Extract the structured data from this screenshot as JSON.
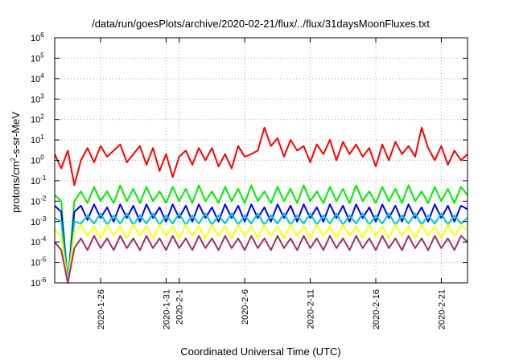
{
  "chart_data": {
    "type": "line",
    "title": "/data/run/goesPlots/archive/2020-02-21/flux/../flux/31daysMoonFluxes.txt",
    "xlabel": "Coordinated Universal Time (UTC)",
    "ylabel": "protons/cm2-s-sr-MeV",
    "y_scale": "log",
    "ylim": [
      1e-06,
      1000000.0
    ],
    "xlim": [
      "2020-01-22T12:00",
      "2020-02-23T00:00"
    ],
    "grid": true,
    "legend": "none",
    "y_tick_labels": [
      "10-6",
      "10-5",
      "10-4",
      "10-3",
      "10-2",
      "10-1",
      "100",
      "101",
      "102",
      "103",
      "104",
      "105",
      "106"
    ],
    "x_tick_labels": [
      "2020-1-26",
      "2020-1-31",
      "2020-2-1",
      "2020-2-6",
      "2020-2-11",
      "2020-2-16",
      "2020-2-21"
    ],
    "x_ticks": [
      "2020-01-26",
      "2020-01-31",
      "2020-02-01",
      "2020-02-06",
      "2020-02-11",
      "2020-02-16",
      "2020-02-21"
    ],
    "series": [
      {
        "color": "#ff0000",
        "x": [
          "2020-01-22T12:00",
          "2020-01-23T00:00",
          "2020-01-23T12:00",
          "2020-01-24T00:00",
          "2020-01-24T12:00",
          "2020-01-25T00:00",
          "2020-01-25T12:00",
          "2020-01-26T00:00",
          "2020-01-26T12:00",
          "2020-01-27T00:00",
          "2020-01-27T12:00",
          "2020-01-28T00:00",
          "2020-01-28T12:00",
          "2020-01-29T00:00",
          "2020-01-29T12:00",
          "2020-01-30T00:00",
          "2020-01-30T12:00",
          "2020-01-31T00:00",
          "2020-01-31T12:00",
          "2020-02-01T00:00",
          "2020-02-01T12:00",
          "2020-02-02T00:00",
          "2020-02-02T12:00",
          "2020-02-03T00:00",
          "2020-02-03T12:00",
          "2020-02-04T00:00",
          "2020-02-04T12:00",
          "2020-02-05T00:00",
          "2020-02-05T12:00",
          "2020-02-06T00:00",
          "2020-02-06T12:00",
          "2020-02-07T00:00",
          "2020-02-07T12:00",
          "2020-02-08T00:00",
          "2020-02-08T12:00",
          "2020-02-09T00:00",
          "2020-02-09T12:00",
          "2020-02-10T00:00",
          "2020-02-10T12:00",
          "2020-02-11T00:00",
          "2020-02-11T12:00",
          "2020-02-12T00:00",
          "2020-02-12T12:00",
          "2020-02-13T00:00",
          "2020-02-13T12:00",
          "2020-02-14T00:00",
          "2020-02-14T12:00",
          "2020-02-15T00:00",
          "2020-02-15T12:00",
          "2020-02-16T00:00",
          "2020-02-16T12:00",
          "2020-02-17T00:00",
          "2020-02-17T12:00",
          "2020-02-18T00:00",
          "2020-02-18T12:00",
          "2020-02-19T00:00",
          "2020-02-19T12:00",
          "2020-02-20T00:00",
          "2020-02-20T12:00",
          "2020-02-21T00:00",
          "2020-02-21T12:00",
          "2020-02-22T00:00",
          "2020-02-22T12:00",
          "2020-02-23T00:00"
        ],
        "values": [
          2,
          0.4,
          3,
          0.06,
          1,
          4,
          0.8,
          5,
          1.5,
          3,
          6,
          0.8,
          2,
          5,
          0.6,
          4,
          0.3,
          2,
          0.15,
          1.5,
          3,
          0.6,
          4,
          1,
          4,
          0.5,
          2,
          0.4,
          5,
          1.5,
          2,
          3,
          40,
          5,
          12,
          1.5,
          10,
          3,
          5,
          0.8,
          6,
          2,
          10,
          1,
          8,
          2,
          6,
          1.5,
          4,
          0.5,
          6,
          1,
          8,
          2,
          5,
          1.5,
          40,
          4,
          1,
          5,
          0.6,
          3,
          1,
          2
        ]
      },
      {
        "color": "#00ee00",
        "x": [
          "2020-01-22T12:00",
          "2020-01-23T00:00",
          "2020-01-23T12:00",
          "2020-01-24T00:00",
          "2020-01-24T12:00",
          "2020-01-25T00:00",
          "2020-01-25T12:00",
          "2020-01-26T00:00",
          "2020-01-26T12:00",
          "2020-01-27T00:00",
          "2020-01-27T12:00",
          "2020-01-28T00:00",
          "2020-01-28T12:00",
          "2020-01-29T00:00",
          "2020-01-29T12:00",
          "2020-01-30T00:00",
          "2020-01-30T12:00",
          "2020-01-31T00:00",
          "2020-01-31T12:00",
          "2020-02-01T00:00",
          "2020-02-01T12:00",
          "2020-02-02T00:00",
          "2020-02-02T12:00",
          "2020-02-03T00:00",
          "2020-02-03T12:00",
          "2020-02-04T00:00",
          "2020-02-04T12:00",
          "2020-02-05T00:00",
          "2020-02-05T12:00",
          "2020-02-06T00:00",
          "2020-02-06T12:00",
          "2020-02-07T00:00",
          "2020-02-07T12:00",
          "2020-02-08T00:00",
          "2020-02-08T12:00",
          "2020-02-09T00:00",
          "2020-02-09T12:00",
          "2020-02-10T00:00",
          "2020-02-10T12:00",
          "2020-02-11T00:00",
          "2020-02-11T12:00",
          "2020-02-12T00:00",
          "2020-02-12T12:00",
          "2020-02-13T00:00",
          "2020-02-13T12:00",
          "2020-02-14T00:00",
          "2020-02-14T12:00",
          "2020-02-15T00:00",
          "2020-02-15T12:00",
          "2020-02-16T00:00",
          "2020-02-16T12:00",
          "2020-02-17T00:00",
          "2020-02-17T12:00",
          "2020-02-18T00:00",
          "2020-02-18T12:00",
          "2020-02-19T00:00",
          "2020-02-19T12:00",
          "2020-02-20T00:00",
          "2020-02-20T12:00",
          "2020-02-21T00:00",
          "2020-02-21T12:00",
          "2020-02-22T00:00",
          "2020-02-22T12:00",
          "2020-02-23T00:00"
        ],
        "values": [
          0.02,
          0.01,
          1e-06,
          0.01,
          0.03,
          0.008,
          0.05,
          0.01,
          0.03,
          0.008,
          0.06,
          0.01,
          0.04,
          0.008,
          0.05,
          0.01,
          0.03,
          0.008,
          0.05,
          0.01,
          0.04,
          0.008,
          0.06,
          0.01,
          0.03,
          0.008,
          0.05,
          0.01,
          0.04,
          0.008,
          0.06,
          0.01,
          0.03,
          0.008,
          0.05,
          0.01,
          0.04,
          0.008,
          0.06,
          0.01,
          0.03,
          0.008,
          0.05,
          0.01,
          0.04,
          0.008,
          0.06,
          0.01,
          0.03,
          0.008,
          0.05,
          0.01,
          0.04,
          0.008,
          0.06,
          0.01,
          0.03,
          0.008,
          0.05,
          0.01,
          0.04,
          0.008,
          0.05,
          0.02
        ]
      },
      {
        "color": "#0000ff",
        "x": [
          "2020-01-22T12:00",
          "2020-01-23T00:00",
          "2020-01-23T12:00",
          "2020-01-24T00:00",
          "2020-01-24T12:00",
          "2020-01-25T00:00",
          "2020-01-25T12:00",
          "2020-01-26T00:00",
          "2020-01-26T12:00",
          "2020-01-27T00:00",
          "2020-01-27T12:00",
          "2020-01-28T00:00",
          "2020-01-28T12:00",
          "2020-01-29T00:00",
          "2020-01-29T12:00",
          "2020-01-30T00:00",
          "2020-01-30T12:00",
          "2020-01-31T00:00",
          "2020-01-31T12:00",
          "2020-02-01T00:00",
          "2020-02-01T12:00",
          "2020-02-02T00:00",
          "2020-02-02T12:00",
          "2020-02-03T00:00",
          "2020-02-03T12:00",
          "2020-02-04T00:00",
          "2020-02-04T12:00",
          "2020-02-05T00:00",
          "2020-02-05T12:00",
          "2020-02-06T00:00",
          "2020-02-06T12:00",
          "2020-02-07T00:00",
          "2020-02-07T12:00",
          "2020-02-08T00:00",
          "2020-02-08T12:00",
          "2020-02-09T00:00",
          "2020-02-09T12:00",
          "2020-02-10T00:00",
          "2020-02-10T12:00",
          "2020-02-11T00:00",
          "2020-02-11T12:00",
          "2020-02-12T00:00",
          "2020-02-12T12:00",
          "2020-02-13T00:00",
          "2020-02-13T12:00",
          "2020-02-14T00:00",
          "2020-02-14T12:00",
          "2020-02-15T00:00",
          "2020-02-15T12:00",
          "2020-02-16T00:00",
          "2020-02-16T12:00",
          "2020-02-17T00:00",
          "2020-02-17T12:00",
          "2020-02-18T00:00",
          "2020-02-18T12:00",
          "2020-02-19T00:00",
          "2020-02-19T12:00",
          "2020-02-20T00:00",
          "2020-02-20T12:00",
          "2020-02-21T00:00",
          "2020-02-21T12:00",
          "2020-02-22T00:00",
          "2020-02-22T12:00",
          "2020-02-23T00:00"
        ],
        "values": [
          0.006,
          0.003,
          1e-06,
          0.003,
          0.006,
          0.0012,
          0.007,
          0.0015,
          0.005,
          0.001,
          0.007,
          0.0015,
          0.006,
          0.001,
          0.007,
          0.0015,
          0.005,
          0.001,
          0.007,
          0.0015,
          0.006,
          0.001,
          0.007,
          0.0015,
          0.005,
          0.001,
          0.007,
          0.0015,
          0.006,
          0.001,
          0.007,
          0.0015,
          0.005,
          0.001,
          0.007,
          0.0015,
          0.006,
          0.001,
          0.007,
          0.0015,
          0.005,
          0.001,
          0.007,
          0.0015,
          0.006,
          0.001,
          0.007,
          0.0015,
          0.005,
          0.001,
          0.007,
          0.0015,
          0.006,
          0.001,
          0.007,
          0.0015,
          0.005,
          0.001,
          0.007,
          0.0015,
          0.006,
          0.001,
          0.006,
          0.004
        ]
      },
      {
        "color": "#00c8c8",
        "x": [
          "2020-01-22T12:00",
          "2020-01-23T00:00",
          "2020-01-23T12:00",
          "2020-01-24T00:00",
          "2020-01-24T12:00",
          "2020-01-25T00:00",
          "2020-01-25T12:00",
          "2020-01-26T00:00",
          "2020-01-26T12:00",
          "2020-01-27T00:00",
          "2020-01-27T12:00",
          "2020-01-28T00:00",
          "2020-01-28T12:00",
          "2020-01-29T00:00",
          "2020-01-29T12:00",
          "2020-01-30T00:00",
          "2020-01-30T12:00",
          "2020-01-31T00:00",
          "2020-01-31T12:00",
          "2020-02-01T00:00",
          "2020-02-01T12:00",
          "2020-02-02T00:00",
          "2020-02-02T12:00",
          "2020-02-03T00:00",
          "2020-02-03T12:00",
          "2020-02-04T00:00",
          "2020-02-04T12:00",
          "2020-02-05T00:00",
          "2020-02-05T12:00",
          "2020-02-06T00:00",
          "2020-02-06T12:00",
          "2020-02-07T00:00",
          "2020-02-07T12:00",
          "2020-02-08T00:00",
          "2020-02-08T12:00",
          "2020-02-09T00:00",
          "2020-02-09T12:00",
          "2020-02-10T00:00",
          "2020-02-10T12:00",
          "2020-02-11T00:00",
          "2020-02-11T12:00",
          "2020-02-12T00:00",
          "2020-02-12T12:00",
          "2020-02-13T00:00",
          "2020-02-13T12:00",
          "2020-02-14T00:00",
          "2020-02-14T12:00",
          "2020-02-15T00:00",
          "2020-02-15T12:00",
          "2020-02-16T00:00",
          "2020-02-16T12:00",
          "2020-02-17T00:00",
          "2020-02-17T12:00",
          "2020-02-18T00:00",
          "2020-02-18T12:00",
          "2020-02-19T00:00",
          "2020-02-19T12:00",
          "2020-02-20T00:00",
          "2020-02-20T12:00",
          "2020-02-21T00:00",
          "2020-02-21T12:00",
          "2020-02-22T00:00",
          "2020-02-22T12:00",
          "2020-02-23T00:00"
        ],
        "values": [
          0.0015,
          0.001,
          1e-06,
          0.001,
          0.0008,
          0.002,
          0.0008,
          0.0025,
          0.0007,
          0.002,
          0.0008,
          0.0025,
          0.0007,
          0.002,
          0.0008,
          0.0025,
          0.0007,
          0.002,
          0.0008,
          0.0025,
          0.0007,
          0.002,
          0.0008,
          0.0025,
          0.0007,
          0.002,
          0.0008,
          0.0025,
          0.0007,
          0.002,
          0.0008,
          0.0025,
          0.0007,
          0.002,
          0.0008,
          0.0025,
          0.0007,
          0.002,
          0.0008,
          0.0025,
          0.0007,
          0.002,
          0.0008,
          0.0025,
          0.0007,
          0.002,
          0.0008,
          0.0025,
          0.0007,
          0.002,
          0.0008,
          0.0025,
          0.0007,
          0.002,
          0.0008,
          0.0025,
          0.0007,
          0.002,
          0.0008,
          0.0025,
          0.0007,
          0.002,
          0.0008,
          0.0015
        ]
      },
      {
        "color": "#ffff00",
        "x": [
          "2020-01-22T12:00",
          "2020-01-23T00:00",
          "2020-01-23T12:00",
          "2020-01-24T00:00",
          "2020-01-24T12:00",
          "2020-01-25T00:00",
          "2020-01-25T12:00",
          "2020-01-26T00:00",
          "2020-01-26T12:00",
          "2020-01-27T00:00",
          "2020-01-27T12:00",
          "2020-01-28T00:00",
          "2020-01-28T12:00",
          "2020-01-29T00:00",
          "2020-01-29T12:00",
          "2020-01-30T00:00",
          "2020-01-30T12:00",
          "2020-01-31T00:00",
          "2020-01-31T12:00",
          "2020-02-01T00:00",
          "2020-02-01T12:00",
          "2020-02-02T00:00",
          "2020-02-02T12:00",
          "2020-02-03T00:00",
          "2020-02-03T12:00",
          "2020-02-04T00:00",
          "2020-02-04T12:00",
          "2020-02-05T00:00",
          "2020-02-05T12:00",
          "2020-02-06T00:00",
          "2020-02-06T12:00",
          "2020-02-07T00:00",
          "2020-02-07T12:00",
          "2020-02-08T00:00",
          "2020-02-08T12:00",
          "2020-02-09T00:00",
          "2020-02-09T12:00",
          "2020-02-10T00:00",
          "2020-02-10T12:00",
          "2020-02-11T00:00",
          "2020-02-11T12:00",
          "2020-02-12T00:00",
          "2020-02-12T12:00",
          "2020-02-13T00:00",
          "2020-02-13T12:00",
          "2020-02-14T00:00",
          "2020-02-14T12:00",
          "2020-02-15T00:00",
          "2020-02-15T12:00",
          "2020-02-16T00:00",
          "2020-02-16T12:00",
          "2020-02-17T00:00",
          "2020-02-17T12:00",
          "2020-02-18T00:00",
          "2020-02-18T12:00",
          "2020-02-19T00:00",
          "2020-02-19T12:00",
          "2020-02-20T00:00",
          "2020-02-20T12:00",
          "2020-02-21T00:00",
          "2020-02-21T12:00",
          "2020-02-22T00:00",
          "2020-02-22T12:00",
          "2020-02-23T00:00"
        ],
        "values": [
          0.0004,
          0.0002,
          1e-06,
          0.0003,
          0.0007,
          0.0002,
          0.0006,
          0.00015,
          0.0007,
          0.0002,
          0.0006,
          0.00015,
          0.0007,
          0.0002,
          0.0006,
          0.00015,
          0.0007,
          0.0002,
          0.0006,
          0.00015,
          0.0007,
          0.0002,
          0.0006,
          0.00015,
          0.0007,
          0.0002,
          0.0006,
          0.00015,
          0.0007,
          0.0002,
          0.0006,
          0.00015,
          0.0007,
          0.0002,
          0.0006,
          0.00015,
          0.0007,
          0.0002,
          0.0006,
          0.00015,
          0.0007,
          0.0002,
          0.0006,
          0.00015,
          0.0007,
          0.0002,
          0.0006,
          0.00015,
          0.0007,
          0.0002,
          0.0006,
          0.00015,
          0.0007,
          0.0002,
          0.0006,
          0.00015,
          0.0007,
          0.0002,
          0.0006,
          0.00015,
          0.0007,
          0.0002,
          0.0006,
          0.0004
        ]
      },
      {
        "color": "#993366",
        "x": [
          "2020-01-22T12:00",
          "2020-01-23T00:00",
          "2020-01-23T12:00",
          "2020-01-24T00:00",
          "2020-01-24T12:00",
          "2020-01-25T00:00",
          "2020-01-25T12:00",
          "2020-01-26T00:00",
          "2020-01-26T12:00",
          "2020-01-27T00:00",
          "2020-01-27T12:00",
          "2020-01-28T00:00",
          "2020-01-28T12:00",
          "2020-01-29T00:00",
          "2020-01-29T12:00",
          "2020-01-30T00:00",
          "2020-01-30T12:00",
          "2020-01-31T00:00",
          "2020-01-31T12:00",
          "2020-02-01T00:00",
          "2020-02-01T12:00",
          "2020-02-02T00:00",
          "2020-02-02T12:00",
          "2020-02-03T00:00",
          "2020-02-03T12:00",
          "2020-02-04T00:00",
          "2020-02-04T12:00",
          "2020-02-05T00:00",
          "2020-02-05T12:00",
          "2020-02-06T00:00",
          "2020-02-06T12:00",
          "2020-02-07T00:00",
          "2020-02-07T12:00",
          "2020-02-08T00:00",
          "2020-02-08T12:00",
          "2020-02-09T00:00",
          "2020-02-09T12:00",
          "2020-02-10T00:00",
          "2020-02-10T12:00",
          "2020-02-11T00:00",
          "2020-02-11T12:00",
          "2020-02-12T00:00",
          "2020-02-12T12:00",
          "2020-02-13T00:00",
          "2020-02-13T12:00",
          "2020-02-14T00:00",
          "2020-02-14T12:00",
          "2020-02-15T00:00",
          "2020-02-15T12:00",
          "2020-02-16T00:00",
          "2020-02-16T12:00",
          "2020-02-17T00:00",
          "2020-02-17T12:00",
          "2020-02-18T00:00",
          "2020-02-18T12:00",
          "2020-02-19T00:00",
          "2020-02-19T12:00",
          "2020-02-20T00:00",
          "2020-02-20T12:00",
          "2020-02-21T00:00",
          "2020-02-21T12:00",
          "2020-02-22T00:00",
          "2020-02-22T12:00",
          "2020-02-23T00:00"
        ],
        "values": [
          0.0001,
          4e-05,
          1e-06,
          5e-05,
          0.00015,
          4e-05,
          0.0002,
          5e-05,
          0.00015,
          4e-05,
          0.0002,
          5e-05,
          0.00015,
          4e-05,
          0.0002,
          5e-05,
          0.00015,
          4e-05,
          0.0002,
          5e-05,
          0.00015,
          4e-05,
          0.0002,
          5e-05,
          0.00015,
          4e-05,
          0.0002,
          5e-05,
          0.00015,
          4e-05,
          0.0002,
          5e-05,
          0.00015,
          4e-05,
          0.0002,
          5e-05,
          0.00015,
          4e-05,
          0.0002,
          5e-05,
          0.00015,
          4e-05,
          0.0002,
          5e-05,
          0.00015,
          4e-05,
          0.0002,
          5e-05,
          0.00015,
          4e-05,
          0.0002,
          5e-05,
          0.00015,
          4e-05,
          0.0002,
          5e-05,
          0.00015,
          4e-05,
          0.0002,
          5e-05,
          0.00015,
          4e-05,
          0.0002,
          0.0001
        ]
      }
    ]
  }
}
